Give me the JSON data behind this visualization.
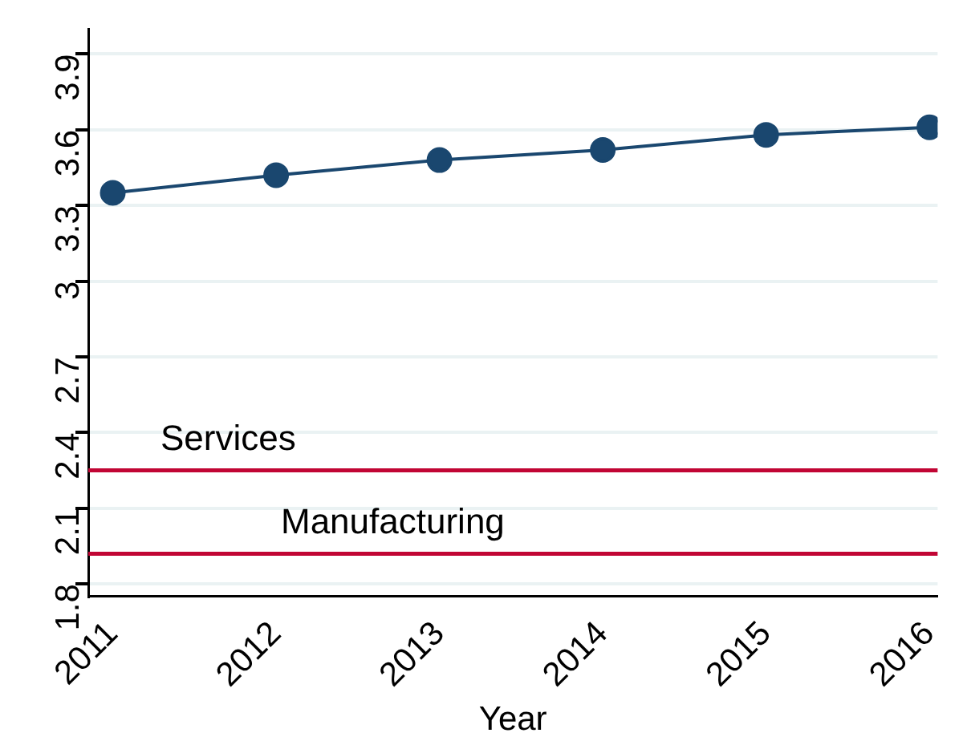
{
  "chart_data": {
    "type": "line",
    "xlabel": "Year",
    "x": [
      2011,
      2012,
      2013,
      2014,
      2015,
      2016
    ],
    "series": [
      {
        "color": "#1a476f",
        "values": [
          3.35,
          3.42,
          3.48,
          3.52,
          3.58,
          3.61
        ]
      }
    ],
    "xlim": [
      2010.85,
      2016.05
    ],
    "xticks": [
      2011,
      2012,
      2013,
      2014,
      2015,
      2016
    ],
    "ylim": [
      1.75,
      4.0
    ],
    "yticks": [
      1.8,
      2.1,
      2.4,
      2.7,
      3,
      3.3,
      3.6,
      3.9
    ],
    "ref_lines": [
      {
        "axis": "y",
        "value": 2.25,
        "label": "Services",
        "color": "#c10534"
      },
      {
        "axis": "y",
        "value": 1.92,
        "label": "Manufacturing",
        "color": "#c10534"
      }
    ],
    "grid": "y",
    "marker": "circle",
    "line_style": "solid",
    "legend": false
  }
}
